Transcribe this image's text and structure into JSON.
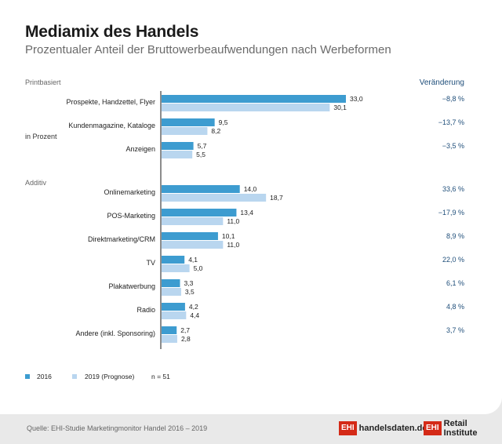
{
  "header": {
    "title": "Mediamix des Handels",
    "subtitle": "Prozentualer Anteil der Bruttowerbeaufwendungen nach Werbeformen"
  },
  "chart_data": {
    "type": "bar",
    "orientation": "horizontal",
    "unit_label": "in Prozent",
    "change_header": "Veränderung",
    "groups": [
      {
        "name": "Printbasiert",
        "categories": [
          {
            "label": "Prospekte, Handzettel, Flyer",
            "values": [
              33.0,
              30.1
            ],
            "value_labels": [
              "33,0",
              "30,1"
            ],
            "change": "−8,8 %"
          },
          {
            "label": "Kundenmagazine, Kataloge",
            "values": [
              9.5,
              8.2
            ],
            "value_labels": [
              "9,5",
              "8,2"
            ],
            "change": "−13,7 %"
          },
          {
            "label": "Anzeigen",
            "values": [
              5.7,
              5.5
            ],
            "value_labels": [
              "5,7",
              "5,5"
            ],
            "change": "−3,5 %"
          }
        ]
      },
      {
        "name": "Additiv",
        "categories": [
          {
            "label": "Onlinemarketing",
            "values": [
              14.0,
              18.7
            ],
            "value_labels": [
              "14,0",
              "18,7"
            ],
            "change": "33,6 %"
          },
          {
            "label": "POS-Marketing",
            "values": [
              13.4,
              11.0
            ],
            "value_labels": [
              "13,4",
              "11,0"
            ],
            "change": "−17,9 %"
          },
          {
            "label": "Direktmarketing/CRM",
            "values": [
              10.1,
              11.0
            ],
            "value_labels": [
              "10,1",
              "11,0"
            ],
            "change": "8,9 %"
          },
          {
            "label": "TV",
            "values": [
              4.1,
              5.0
            ],
            "value_labels": [
              "4,1",
              "5,0"
            ],
            "change": "22,0 %"
          },
          {
            "label": "Plakatwerbung",
            "values": [
              3.3,
              3.5
            ],
            "value_labels": [
              "3,3",
              "3,5"
            ],
            "change": "6,1 %"
          },
          {
            "label": "Radio",
            "values": [
              4.2,
              4.4
            ],
            "value_labels": [
              "4,2",
              "4,4"
            ],
            "change": "4,8 %"
          },
          {
            "label": "Andere (inkl. Sponsoring)",
            "values": [
              2.7,
              2.8
            ],
            "value_labels": [
              "2,7",
              "2,8"
            ],
            "change": "3,7 %"
          }
        ]
      }
    ],
    "series": [
      {
        "name": "2016",
        "color": "#3d9cd0"
      },
      {
        "name": "2019 (Prognose)",
        "color": "#b9d6ef"
      }
    ],
    "note": "n = 51",
    "xlim": [
      0,
      35
    ],
    "colors": {
      "change_text": "#1f4e7a",
      "group_label": "#666666"
    }
  },
  "footer": {
    "source": "Quelle: EHI-Studie Marketingmonitor Handel 2016 – 2019",
    "logos": [
      {
        "box": "EHI",
        "text": "handelsdaten.de"
      },
      {
        "box": "EHI",
        "text": "Retail Institute"
      }
    ]
  }
}
